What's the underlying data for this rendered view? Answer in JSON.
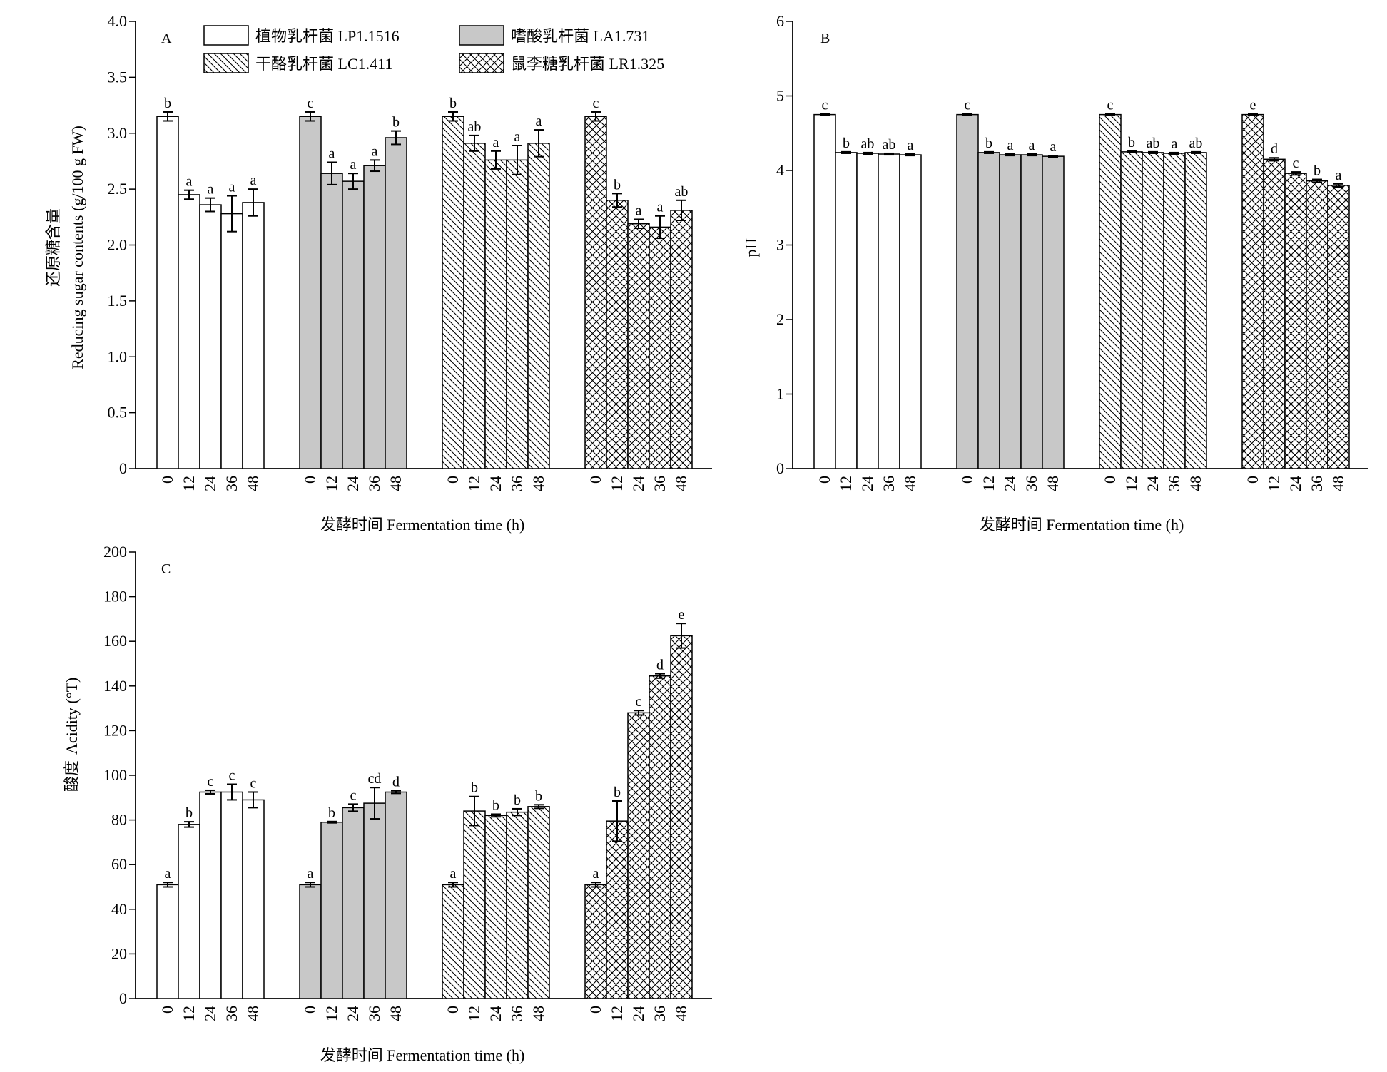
{
  "groups": [
    "LP1.1516",
    "LA1.731",
    "LC1.411",
    "LR1.325"
  ],
  "legend": [
    {
      "label": "植物乳杆菌 LP1.1516",
      "pattern": "none"
    },
    {
      "label": "嗜酸乳杆菌 LA1.731",
      "pattern": "gray"
    },
    {
      "label": "干酪乳杆菌 LC1.411",
      "pattern": "diag"
    },
    {
      "label": "鼠李糖乳杆菌 LR1.325",
      "pattern": "cross"
    }
  ],
  "colors": {
    "gray_fill": "#c8c8c8",
    "line": "#000000"
  },
  "chart_data": [
    {
      "type": "bar",
      "panel": "A",
      "xlabel": "发酵时间 Fermentation time (h)",
      "ylabel_cn": "还原糖含量",
      "ylabel_en": "Reducing sugar contents (g/100 g FW)",
      "x": [
        "0",
        "12",
        "24",
        "36",
        "48"
      ],
      "ylim": [
        0,
        4.0
      ],
      "yticks": [
        "0",
        "0.5",
        "1.0",
        "1.5",
        "2.0",
        "2.5",
        "3.0",
        "3.5",
        "4.0"
      ],
      "series": [
        {
          "values": [
            3.15,
            2.45,
            2.36,
            2.28,
            2.38
          ],
          "errors": [
            0.04,
            0.04,
            0.06,
            0.16,
            0.12
          ],
          "letters": [
            "b",
            "a",
            "a",
            "a",
            "a"
          ]
        },
        {
          "values": [
            3.15,
            2.64,
            2.57,
            2.71,
            2.96
          ],
          "errors": [
            0.04,
            0.1,
            0.07,
            0.05,
            0.06
          ],
          "letters": [
            "c",
            "a",
            "a",
            "a",
            "b"
          ]
        },
        {
          "values": [
            3.15,
            2.91,
            2.76,
            2.76,
            2.91
          ],
          "errors": [
            0.04,
            0.07,
            0.08,
            0.13,
            0.12
          ],
          "letters": [
            "b",
            "ab",
            "a",
            "a",
            "a"
          ]
        },
        {
          "values": [
            3.15,
            2.4,
            2.19,
            2.16,
            2.31
          ],
          "errors": [
            0.04,
            0.06,
            0.04,
            0.1,
            0.09
          ],
          "letters": [
            "c",
            "b",
            "a",
            "a",
            "ab"
          ]
        }
      ]
    },
    {
      "type": "bar",
      "panel": "B",
      "xlabel": "发酵时间 Fermentation time (h)",
      "ylabel_en": "pH",
      "x": [
        "0",
        "12",
        "24",
        "36",
        "48"
      ],
      "ylim": [
        0,
        6
      ],
      "yticks": [
        "0",
        "1",
        "2",
        "3",
        "4",
        "5",
        "6"
      ],
      "series": [
        {
          "values": [
            4.75,
            4.24,
            4.23,
            4.22,
            4.21
          ],
          "errors": [
            0.01,
            0.01,
            0.01,
            0.01,
            0.01
          ],
          "letters": [
            "c",
            "b",
            "ab",
            "ab",
            "a"
          ]
        },
        {
          "values": [
            4.75,
            4.24,
            4.21,
            4.21,
            4.19
          ],
          "errors": [
            0.01,
            0.01,
            0.01,
            0.01,
            0.01
          ],
          "letters": [
            "c",
            "b",
            "a",
            "a",
            "a"
          ]
        },
        {
          "values": [
            4.75,
            4.25,
            4.24,
            4.23,
            4.24
          ],
          "errors": [
            0.01,
            0.01,
            0.01,
            0.01,
            0.01
          ],
          "letters": [
            "c",
            "b",
            "ab",
            "a",
            "ab"
          ]
        },
        {
          "values": [
            4.75,
            4.15,
            3.96,
            3.86,
            3.8
          ],
          "errors": [
            0.01,
            0.02,
            0.02,
            0.02,
            0.02
          ],
          "letters": [
            "e",
            "d",
            "c",
            "b",
            "a"
          ]
        }
      ]
    },
    {
      "type": "bar",
      "panel": "C",
      "xlabel": "发酵时间 Fermentation time (h)",
      "ylabel_cn": "酸度",
      "ylabel_en": "Acidity (°T)",
      "x": [
        "0",
        "12",
        "24",
        "36",
        "48"
      ],
      "ylim": [
        0,
        200
      ],
      "yticks": [
        "0",
        "20",
        "40",
        "60",
        "80",
        "100",
        "120",
        "140",
        "160",
        "180",
        "200"
      ],
      "series": [
        {
          "values": [
            51,
            78,
            92.5,
            92.5,
            89
          ],
          "errors": [
            1,
            1.2,
            0.8,
            3.5,
            3.5
          ],
          "letters": [
            "a",
            "b",
            "c",
            "c",
            "c"
          ]
        },
        {
          "values": [
            51,
            79,
            85.5,
            87.5,
            92.5
          ],
          "errors": [
            1,
            0.3,
            1.6,
            7,
            0.6
          ],
          "letters": [
            "a",
            "b",
            "c",
            "cd",
            "d"
          ]
        },
        {
          "values": [
            51,
            84,
            82,
            83.5,
            86
          ],
          "errors": [
            1,
            6.5,
            0.6,
            1.5,
            0.8
          ],
          "letters": [
            "a",
            "b",
            "b",
            "b",
            "b"
          ]
        },
        {
          "values": [
            51,
            79.5,
            128,
            144.5,
            162.5
          ],
          "errors": [
            1,
            9,
            1,
            1,
            5.5
          ],
          "letters": [
            "a",
            "b",
            "c",
            "d",
            "e"
          ]
        }
      ]
    }
  ]
}
